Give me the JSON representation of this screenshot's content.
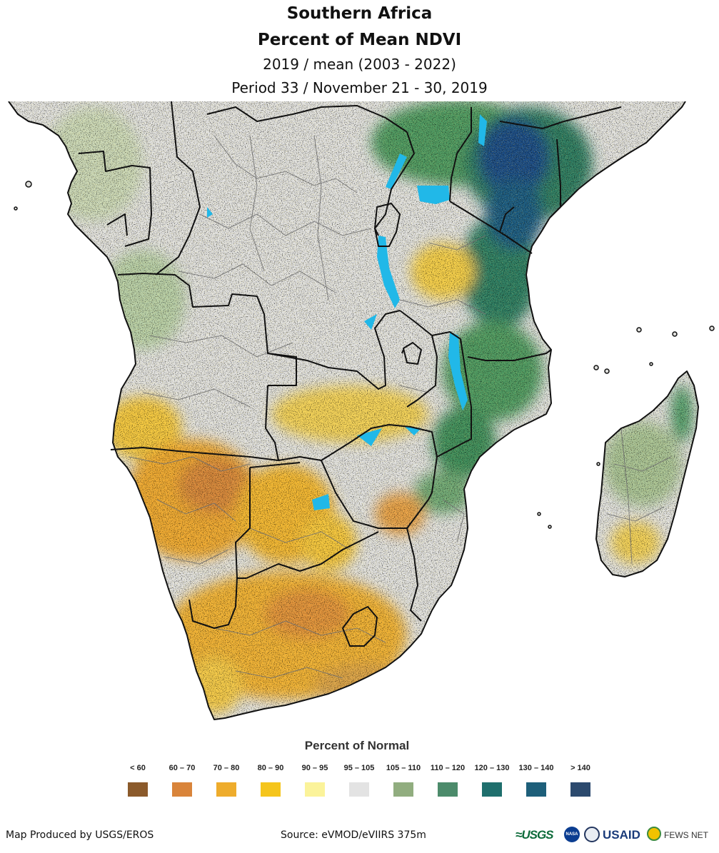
{
  "title": {
    "line1": "Southern Africa",
    "line2": "Percent of Mean NDVI",
    "line3": "2019 / mean (2003 - 2022)",
    "line4": "Period 33 / November 21 - 30, 2019"
  },
  "legend": {
    "title": "Percent of Normal",
    "items": [
      {
        "label": "< 60",
        "color": "#8b5a2b"
      },
      {
        "label": "60 – 70",
        "color": "#d9843a"
      },
      {
        "label": "70 – 80",
        "color": "#eeac2c"
      },
      {
        "label": "80 – 90",
        "color": "#f5c51c"
      },
      {
        "label": "90 – 95",
        "color": "#fbf39a"
      },
      {
        "label": "95 – 105",
        "color": "#e3e3e3"
      },
      {
        "label": "105 – 110",
        "color": "#91ad7f"
      },
      {
        "label": "110 – 120",
        "color": "#4c8b6b"
      },
      {
        "label": "120 – 130",
        "color": "#1f6f6d"
      },
      {
        "label": "130 – 140",
        "color": "#1e5f7a"
      },
      {
        "label": "> 140",
        "color": "#2c4a6e"
      }
    ]
  },
  "footer": {
    "credit": "Map Produced by USGS/EROS",
    "source": "Source: eVMOD/eVIIRS 375m"
  },
  "logos": {
    "usgs": "≈USGS",
    "nasa": "NASA",
    "usaid": "USAID",
    "fews": "FEWS NET"
  },
  "colors": {
    "water": "#21b8e8",
    "border": "#111111",
    "admin": "#6e6e6e"
  }
}
